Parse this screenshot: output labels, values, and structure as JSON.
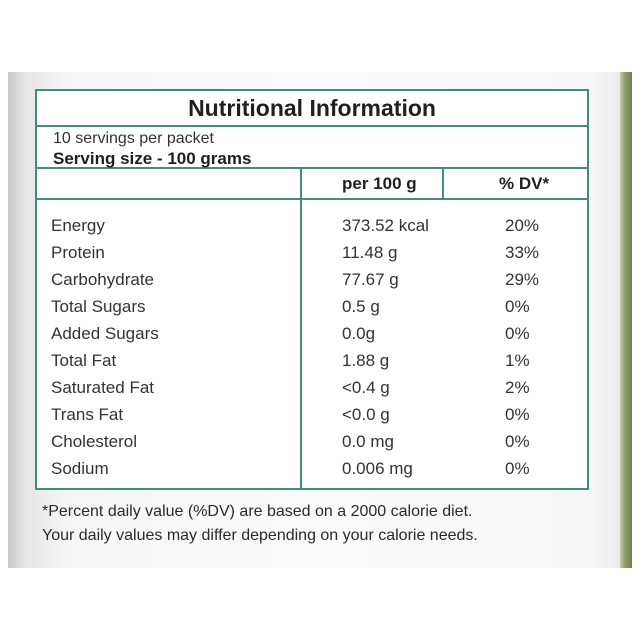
{
  "label": {
    "title": "Nutritional Information",
    "servings_per_packet": "10 servings per packet",
    "serving_size": "Serving size - 100 grams",
    "columns": {
      "per": "per 100 g",
      "dv": "% DV*"
    },
    "rows": [
      {
        "name": "Energy",
        "amount": "373.52 kcal",
        "dv": "20%"
      },
      {
        "name": "Protein",
        "amount": "11.48 g",
        "dv": "33%"
      },
      {
        "name": "Carbohydrate",
        "amount": "77.67 g",
        "dv": "29%"
      },
      {
        "name": "Total Sugars",
        "amount": "0.5 g",
        "dv": "0%"
      },
      {
        "name": "Added Sugars",
        "amount": "0.0g",
        "dv": "0%"
      },
      {
        "name": "Total Fat",
        "amount": "1.88 g",
        "dv": "1%"
      },
      {
        "name": "Saturated Fat",
        "amount": "<0.4 g",
        "dv": "2%"
      },
      {
        "name": "Trans Fat",
        "amount": "<0.0 g",
        "dv": "0%"
      },
      {
        "name": "Cholesterol",
        "amount": "0.0 mg",
        "dv": "0%"
      },
      {
        "name": "Sodium",
        "amount": "0.006 mg",
        "dv": "0%"
      }
    ],
    "footnote_1": "*Percent daily value (%DV) are based on a 2000 calorie diet.",
    "footnote_2": "Your daily values may differ depending on your calorie needs."
  },
  "colors": {
    "border": "#3f8d80",
    "background_edge": "#6f7f4a"
  }
}
